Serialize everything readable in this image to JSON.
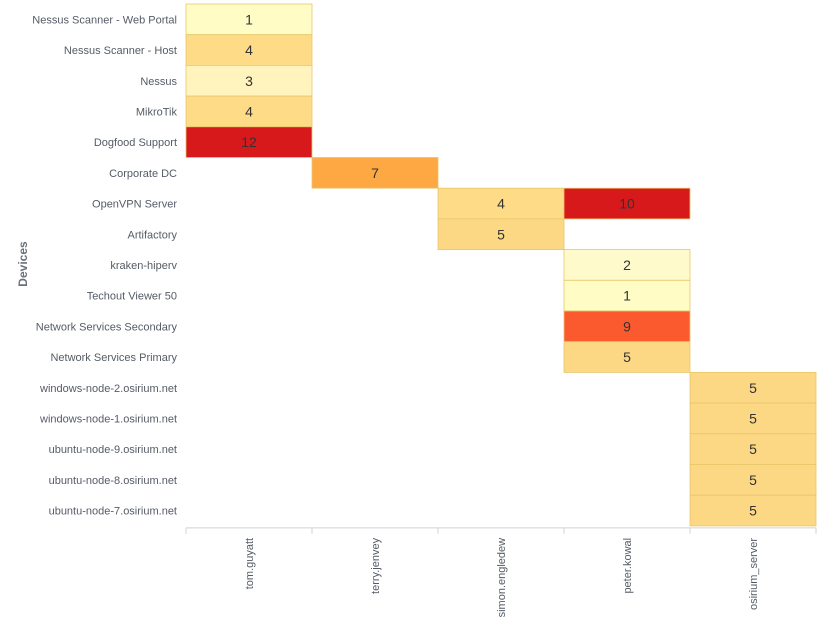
{
  "chart_data": {
    "type": "heatmap",
    "ylabel": "Devices",
    "xlabel": "",
    "x_categories": [
      "tom.guyatt",
      "terry.jenvey",
      "simon.engledew",
      "peter.kowal",
      "osirium_server"
    ],
    "y_categories": [
      "Nessus Scanner - Web Portal",
      "Nessus Scanner - Host",
      "Nessus",
      "MikroTik",
      "Dogfood Support",
      "Corporate DC",
      "OpenVPN Server",
      "Artifactory",
      "kraken-hiperv",
      "Techout Viewer 50",
      "Network Services Secondary",
      "Network Services Primary",
      "windows-node-2.osirium.net",
      "windows-node-1.osirium.net",
      "ubuntu-node-9.osirium.net",
      "ubuntu-node-8.osirium.net",
      "ubuntu-node-7.osirium.net"
    ],
    "cells": [
      {
        "x": "tom.guyatt",
        "y": "Nessus Scanner - Web Portal",
        "value": 1
      },
      {
        "x": "tom.guyatt",
        "y": "Nessus Scanner - Host",
        "value": 4
      },
      {
        "x": "tom.guyatt",
        "y": "Nessus",
        "value": 3
      },
      {
        "x": "tom.guyatt",
        "y": "MikroTik",
        "value": 4
      },
      {
        "x": "tom.guyatt",
        "y": "Dogfood Support",
        "value": 12
      },
      {
        "x": "terry.jenvey",
        "y": "Corporate DC",
        "value": 7
      },
      {
        "x": "simon.engledew",
        "y": "OpenVPN Server",
        "value": 4
      },
      {
        "x": "peter.kowal",
        "y": "OpenVPN Server",
        "value": 10
      },
      {
        "x": "simon.engledew",
        "y": "Artifactory",
        "value": 5
      },
      {
        "x": "peter.kowal",
        "y": "kraken-hiperv",
        "value": 2
      },
      {
        "x": "peter.kowal",
        "y": "Techout Viewer 50",
        "value": 1
      },
      {
        "x": "peter.kowal",
        "y": "Network Services Secondary",
        "value": 9
      },
      {
        "x": "peter.kowal",
        "y": "Network Services Primary",
        "value": 5
      },
      {
        "x": "osirium_server",
        "y": "windows-node-2.osirium.net",
        "value": 5
      },
      {
        "x": "osirium_server",
        "y": "windows-node-1.osirium.net",
        "value": 5
      },
      {
        "x": "osirium_server",
        "y": "ubuntu-node-9.osirium.net",
        "value": 5
      },
      {
        "x": "osirium_server",
        "y": "ubuntu-node-8.osirium.net",
        "value": 5
      },
      {
        "x": "osirium_server",
        "y": "ubuntu-node-7.osirium.net",
        "value": 5
      }
    ],
    "color_scale": [
      {
        "value": 1,
        "color": "#fffdc5"
      },
      {
        "value": 2,
        "color": "#fffacb"
      },
      {
        "value": 3,
        "color": "#fff4bd"
      },
      {
        "value": 4,
        "color": "#fddb87"
      },
      {
        "value": 5,
        "color": "#fdd884"
      },
      {
        "value": 7,
        "color": "#fda843"
      },
      {
        "value": 9,
        "color": "#fb5a2e"
      },
      {
        "value": 10,
        "color": "#d7191c"
      },
      {
        "value": 12,
        "color": "#d7191c"
      }
    ],
    "cell_border_color": "#e8c66a",
    "legend": "none",
    "grid": false
  }
}
